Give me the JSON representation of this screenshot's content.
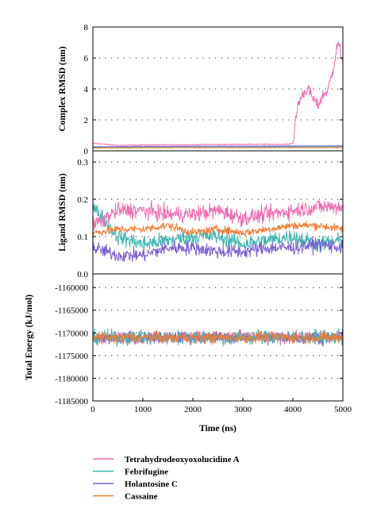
{
  "colors": {
    "Tetrahydrodeoxyoxolucidine A": "#f06ab0",
    "Febrifugine": "#3fb6b2",
    "Holantosine C": "#7a5bd0",
    "Cassaine": "#f57a32"
  },
  "chart_data": [
    {
      "type": "line",
      "panel": "complex-rmsd",
      "ylabel": "Complex RMSD (nm)",
      "ylim": [
        0,
        8
      ],
      "yticks": [
        0,
        2,
        4,
        6,
        8
      ],
      "xlim": [
        0,
        5000
      ],
      "grid": "horizontal dotted",
      "series": [
        {
          "name": "Tetrahydrodeoxyoxolucidine A",
          "x": [
            0,
            500,
            1000,
            2000,
            3000,
            3900,
            4000,
            4100,
            4200,
            4300,
            4400,
            4500,
            4600,
            4700,
            4800,
            4900,
            5000
          ],
          "y": [
            0.5,
            0.35,
            0.38,
            0.4,
            0.42,
            0.42,
            0.5,
            3.0,
            3.7,
            4.0,
            3.4,
            2.9,
            3.6,
            3.9,
            5.2,
            7.0,
            5.8
          ]
        },
        {
          "name": "Febrifugine",
          "x": [
            0,
            1000,
            2000,
            3000,
            4000,
            5000
          ],
          "y": [
            0.22,
            0.24,
            0.24,
            0.25,
            0.26,
            0.27
          ]
        },
        {
          "name": "Holantosine C",
          "x": [
            0,
            1000,
            2000,
            3000,
            4000,
            5000
          ],
          "y": [
            0.26,
            0.28,
            0.3,
            0.3,
            0.31,
            0.32
          ]
        },
        {
          "name": "Cassaine",
          "x": [
            0,
            1000,
            2000,
            3000,
            4000,
            5000
          ],
          "y": [
            0.18,
            0.2,
            0.21,
            0.2,
            0.21,
            0.21
          ]
        }
      ]
    },
    {
      "type": "line",
      "panel": "ligand-rmsd",
      "ylabel": "Ligand RMSD (nm)",
      "ylim": [
        0,
        0.33
      ],
      "yticks": [
        0.0,
        0.1,
        0.2,
        0.3
      ],
      "ytick_labels": [
        "0.0",
        "0.1",
        "0.2",
        "0.3"
      ],
      "xlim": [
        0,
        5000
      ],
      "grid": "horizontal dotted",
      "series": [
        {
          "name": "Tetrahydrodeoxyoxolucidine A",
          "x": [
            0,
            500,
            1000,
            1500,
            2000,
            2500,
            3000,
            3500,
            4000,
            4500,
            5000
          ],
          "y": [
            0.13,
            0.17,
            0.17,
            0.16,
            0.16,
            0.17,
            0.15,
            0.16,
            0.17,
            0.18,
            0.18
          ]
        },
        {
          "name": "Febrifugine",
          "x": [
            0,
            500,
            1000,
            1500,
            2000,
            2500,
            3000,
            3500,
            4000,
            4500,
            5000
          ],
          "y": [
            0.18,
            0.1,
            0.08,
            0.09,
            0.1,
            0.1,
            0.08,
            0.09,
            0.1,
            0.08,
            0.09
          ]
        },
        {
          "name": "Holantosine C",
          "x": [
            0,
            500,
            1000,
            1500,
            2000,
            2500,
            3000,
            3500,
            4000,
            4500,
            5000
          ],
          "y": [
            0.07,
            0.05,
            0.05,
            0.07,
            0.07,
            0.06,
            0.06,
            0.07,
            0.07,
            0.08,
            0.07
          ]
        },
        {
          "name": "Cassaine",
          "x": [
            0,
            500,
            1000,
            1500,
            2000,
            2500,
            3000,
            3500,
            4000,
            4500,
            5000
          ],
          "y": [
            0.11,
            0.12,
            0.12,
            0.13,
            0.11,
            0.12,
            0.11,
            0.12,
            0.13,
            0.13,
            0.12
          ]
        }
      ]
    },
    {
      "type": "line",
      "panel": "total-energy",
      "ylabel": "Total Energy (kJ/mol)",
      "xlabel": "Time (ns)",
      "ylim": [
        -1185000,
        -1157000
      ],
      "yticks": [
        -1160000,
        -1165000,
        -1170000,
        -1175000,
        -1180000,
        -1185000
      ],
      "ytick_labels": [
        "-1160000",
        "-1165000",
        "-1170000",
        "-1175000",
        "-1180000",
        "-1185000"
      ],
      "xlim": [
        0,
        5000
      ],
      "xticks": [
        0,
        1000,
        2000,
        3000,
        4000,
        5000
      ],
      "grid": "horizontal dotted",
      "series": [
        {
          "name": "Tetrahydrodeoxyoxolucidine A",
          "x": [
            0,
            1000,
            2000,
            3000,
            4000,
            5000
          ],
          "y": [
            -1171000,
            -1171000,
            -1171000,
            -1171000,
            -1171000,
            -1171000
          ]
        },
        {
          "name": "Febrifugine",
          "x": [
            0,
            1000,
            2000,
            3000,
            4000,
            5000
          ],
          "y": [
            -1171000,
            -1171000,
            -1171000,
            -1171000,
            -1171000,
            -1171000
          ]
        },
        {
          "name": "Holantosine C",
          "x": [
            0,
            1000,
            2000,
            3000,
            4000,
            5000
          ],
          "y": [
            -1171000,
            -1171000,
            -1171000,
            -1171000,
            -1171000,
            -1171000
          ]
        },
        {
          "name": "Cassaine",
          "x": [
            0,
            1000,
            2000,
            3000,
            4000,
            5000
          ],
          "y": [
            -1171000,
            -1171000,
            -1171000,
            -1171000,
            -1171000,
            -1171000
          ]
        }
      ]
    }
  ],
  "legend": {
    "placement": "bottom",
    "items": [
      "Tetrahydrodeoxyoxolucidine A",
      "Febrifugine",
      "Holantosine C",
      "Cassaine"
    ]
  }
}
